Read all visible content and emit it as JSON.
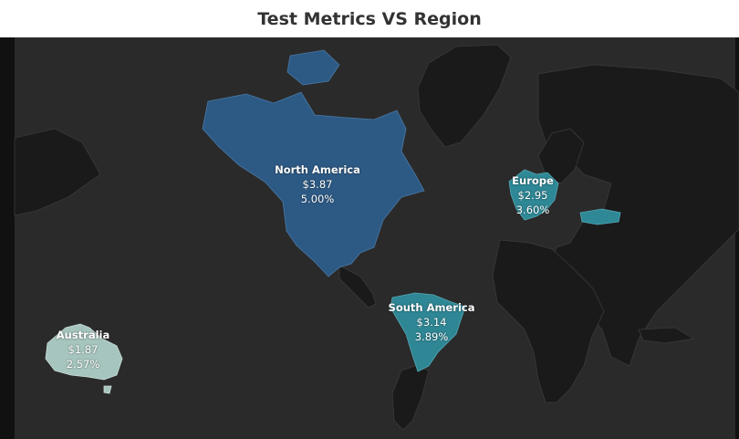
{
  "title": "Test Metrics VS Region",
  "colors": {
    "background": "#111111",
    "ocean": "#2a2a2a",
    "land": "#1a1a1a",
    "border": "#3a3a3a",
    "north_america": "#2d5a85",
    "south_america": "#2f8795",
    "europe": "#2e8896",
    "australia": "#a6c5be"
  },
  "regions": [
    {
      "key": "north_america",
      "name": "North America",
      "price": "$3.87",
      "percent": "5.00%"
    },
    {
      "key": "europe",
      "name": "Europe",
      "price": "$2.95",
      "percent": "3.60%"
    },
    {
      "key": "south_america",
      "name": "South America",
      "price": "$3.14",
      "percent": "3.89%"
    },
    {
      "key": "australia",
      "name": "Australia",
      "price": "$1.87",
      "percent": "2.57%"
    }
  ]
}
